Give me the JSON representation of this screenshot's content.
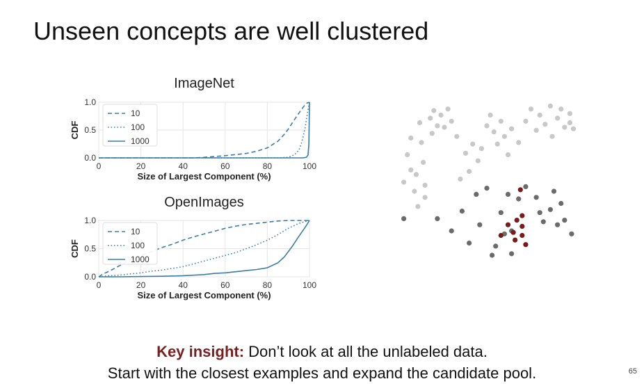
{
  "slide": {
    "title": "Unseen concepts are well clustered",
    "key_label": "Key insight:",
    "insight_line1": " Don’t look at all the unlabeled data.",
    "insight_line2": "Start with the closest examples and expand the candidate pool.",
    "page_number": "65"
  },
  "chart_data": [
    {
      "type": "line",
      "title": "ImageNet",
      "xlabel": "Size of Largest Component (%)",
      "ylabel": "CDF",
      "xlim": [
        0,
        100
      ],
      "ylim": [
        0,
        1
      ],
      "xticks": [
        0,
        20,
        40,
        60,
        80,
        100
      ],
      "yticks": [
        0.0,
        0.5,
        1.0
      ],
      "legend": "top-left",
      "grid": true,
      "series": [
        {
          "name": "10",
          "style": "dashed",
          "x": [
            0,
            45,
            50,
            60,
            70,
            75,
            80,
            85,
            88,
            90,
            92,
            94,
            96,
            97,
            98,
            99,
            100
          ],
          "y": [
            0,
            0,
            0.01,
            0.04,
            0.08,
            0.12,
            0.18,
            0.3,
            0.42,
            0.52,
            0.64,
            0.75,
            0.86,
            0.91,
            0.96,
            0.99,
            1.0
          ]
        },
        {
          "name": "100",
          "style": "dotted",
          "x": [
            0,
            85,
            90,
            93,
            95,
            96,
            97,
            98,
            99,
            100
          ],
          "y": [
            0,
            0,
            0.01,
            0.06,
            0.14,
            0.24,
            0.38,
            0.55,
            0.8,
            1.0
          ]
        },
        {
          "name": "1000",
          "style": "solid",
          "x": [
            0,
            97,
            98.5,
            99.3,
            99.7,
            100
          ],
          "y": [
            0,
            0,
            0.01,
            0.05,
            0.25,
            1.0
          ]
        }
      ]
    },
    {
      "type": "line",
      "title": "OpenImages",
      "xlabel": "Size of Largest Component (%)",
      "ylabel": "CDF",
      "xlim": [
        0,
        100
      ],
      "ylim": [
        0,
        1
      ],
      "xticks": [
        0,
        20,
        40,
        60,
        80,
        100
      ],
      "yticks": [
        0.0,
        0.5,
        1.0
      ],
      "legend": "top-left",
      "grid": true,
      "series": [
        {
          "name": "10",
          "style": "dashed",
          "x": [
            0,
            2,
            5,
            10,
            15,
            20,
            25,
            30,
            35,
            40,
            45,
            50,
            55,
            60,
            65,
            70,
            75,
            80,
            85,
            90,
            95,
            100
          ],
          "y": [
            0,
            0.05,
            0.1,
            0.2,
            0.3,
            0.37,
            0.45,
            0.52,
            0.58,
            0.65,
            0.71,
            0.76,
            0.81,
            0.86,
            0.9,
            0.93,
            0.95,
            0.97,
            0.99,
            1.0,
            1.0,
            1.0
          ]
        },
        {
          "name": "100",
          "style": "dotted",
          "x": [
            0,
            5,
            10,
            15,
            20,
            25,
            30,
            35,
            40,
            45,
            50,
            55,
            60,
            65,
            70,
            75,
            80,
            85,
            90,
            95,
            100
          ],
          "y": [
            0,
            0.02,
            0.03,
            0.05,
            0.07,
            0.1,
            0.12,
            0.15,
            0.18,
            0.23,
            0.28,
            0.33,
            0.38,
            0.43,
            0.5,
            0.57,
            0.65,
            0.75,
            0.86,
            0.95,
            1.0
          ]
        },
        {
          "name": "1000",
          "style": "solid",
          "x": [
            0,
            10,
            20,
            30,
            40,
            50,
            55,
            60,
            65,
            70,
            75,
            80,
            85,
            88,
            90,
            92,
            95,
            98,
            100
          ],
          "y": [
            0,
            0,
            0.005,
            0.01,
            0.02,
            0.04,
            0.06,
            0.07,
            0.09,
            0.11,
            0.13,
            0.16,
            0.25,
            0.35,
            0.45,
            0.55,
            0.72,
            0.88,
            1.0
          ]
        }
      ]
    }
  ],
  "scatter": {
    "colors": {
      "far": "#c8c8c8",
      "near": "#6b6b6b",
      "core": "#7a1a1a"
    },
    "points": [
      {
        "x": 0.03,
        "y": 0.52,
        "group": "far"
      },
      {
        "x": 0.05,
        "y": 0.34,
        "group": "far"
      },
      {
        "x": 0.07,
        "y": 0.23,
        "group": "far"
      },
      {
        "x": 0.07,
        "y": 0.44,
        "group": "far"
      },
      {
        "x": 0.09,
        "y": 0.58,
        "group": "far"
      },
      {
        "x": 0.1,
        "y": 0.47,
        "group": "far"
      },
      {
        "x": 0.11,
        "y": 0.68,
        "group": "far"
      },
      {
        "x": 0.12,
        "y": 0.13,
        "group": "far"
      },
      {
        "x": 0.13,
        "y": 0.26,
        "group": "far"
      },
      {
        "x": 0.14,
        "y": 0.39,
        "group": "far"
      },
      {
        "x": 0.15,
        "y": 0.54,
        "group": "far"
      },
      {
        "x": 0.15,
        "y": 0.62,
        "group": "far"
      },
      {
        "x": 0.18,
        "y": 0.1,
        "group": "far"
      },
      {
        "x": 0.19,
        "y": 0.2,
        "group": "far"
      },
      {
        "x": 0.2,
        "y": 0.05,
        "group": "far"
      },
      {
        "x": 0.22,
        "y": 0.15,
        "group": "far"
      },
      {
        "x": 0.24,
        "y": 0.08,
        "group": "far"
      },
      {
        "x": 0.26,
        "y": 0.16,
        "group": "far"
      },
      {
        "x": 0.28,
        "y": 0.04,
        "group": "far"
      },
      {
        "x": 0.3,
        "y": 0.12,
        "group": "far"
      },
      {
        "x": 0.33,
        "y": 0.22,
        "group": "far"
      },
      {
        "x": 0.35,
        "y": 0.5,
        "group": "far"
      },
      {
        "x": 0.38,
        "y": 0.33,
        "group": "far"
      },
      {
        "x": 0.4,
        "y": 0.45,
        "group": "far"
      },
      {
        "x": 0.42,
        "y": 0.27,
        "group": "far"
      },
      {
        "x": 0.45,
        "y": 0.38,
        "group": "far"
      },
      {
        "x": 0.47,
        "y": 0.3,
        "group": "far"
      },
      {
        "x": 0.5,
        "y": 0.15,
        "group": "far"
      },
      {
        "x": 0.52,
        "y": 0.08,
        "group": "far"
      },
      {
        "x": 0.54,
        "y": 0.19,
        "group": "far"
      },
      {
        "x": 0.56,
        "y": 0.27,
        "group": "far"
      },
      {
        "x": 0.58,
        "y": 0.12,
        "group": "far"
      },
      {
        "x": 0.6,
        "y": 0.22,
        "group": "far"
      },
      {
        "x": 0.62,
        "y": 0.34,
        "group": "far"
      },
      {
        "x": 0.64,
        "y": 0.17,
        "group": "far"
      },
      {
        "x": 0.68,
        "y": 0.26,
        "group": "far"
      },
      {
        "x": 0.72,
        "y": 0.12,
        "group": "far"
      },
      {
        "x": 0.75,
        "y": 0.04,
        "group": "far"
      },
      {
        "x": 0.78,
        "y": 0.18,
        "group": "far"
      },
      {
        "x": 0.8,
        "y": 0.08,
        "group": "far"
      },
      {
        "x": 0.83,
        "y": 0.14,
        "group": "far"
      },
      {
        "x": 0.86,
        "y": 0.02,
        "group": "far"
      },
      {
        "x": 0.87,
        "y": 0.22,
        "group": "far"
      },
      {
        "x": 0.9,
        "y": 0.1,
        "group": "far"
      },
      {
        "x": 0.92,
        "y": 0.04,
        "group": "far"
      },
      {
        "x": 0.94,
        "y": 0.16,
        "group": "far"
      },
      {
        "x": 0.97,
        "y": 0.13,
        "group": "far"
      },
      {
        "x": 0.97,
        "y": 0.07,
        "group": "far"
      },
      {
        "x": 0.99,
        "y": 0.17,
        "group": "far"
      },
      {
        "x": 0.03,
        "y": 0.76,
        "group": "near"
      },
      {
        "x": 0.22,
        "y": 0.76,
        "group": "near"
      },
      {
        "x": 0.3,
        "y": 0.84,
        "group": "near"
      },
      {
        "x": 0.36,
        "y": 0.71,
        "group": "near"
      },
      {
        "x": 0.4,
        "y": 0.92,
        "group": "near"
      },
      {
        "x": 0.44,
        "y": 0.6,
        "group": "near"
      },
      {
        "x": 0.46,
        "y": 0.8,
        "group": "near"
      },
      {
        "x": 0.5,
        "y": 0.56,
        "group": "near"
      },
      {
        "x": 0.53,
        "y": 1.0,
        "group": "near"
      },
      {
        "x": 0.55,
        "y": 0.94,
        "group": "near"
      },
      {
        "x": 0.58,
        "y": 0.72,
        "group": "near"
      },
      {
        "x": 0.62,
        "y": 0.6,
        "group": "near"
      },
      {
        "x": 0.6,
        "y": 0.86,
        "group": "near"
      },
      {
        "x": 0.64,
        "y": 0.99,
        "group": "near"
      },
      {
        "x": 0.68,
        "y": 0.63,
        "group": "near"
      },
      {
        "x": 0.72,
        "y": 0.55,
        "group": "near"
      },
      {
        "x": 0.78,
        "y": 0.62,
        "group": "near"
      },
      {
        "x": 0.8,
        "y": 0.72,
        "group": "near"
      },
      {
        "x": 0.82,
        "y": 0.78,
        "group": "near"
      },
      {
        "x": 0.86,
        "y": 0.7,
        "group": "near"
      },
      {
        "x": 0.88,
        "y": 0.58,
        "group": "near"
      },
      {
        "x": 0.9,
        "y": 0.8,
        "group": "near"
      },
      {
        "x": 0.92,
        "y": 0.66,
        "group": "near"
      },
      {
        "x": 0.94,
        "y": 0.77,
        "group": "near"
      },
      {
        "x": 0.98,
        "y": 0.86,
        "group": "near"
      },
      {
        "x": 0.64,
        "y": 0.84,
        "group": "near"
      },
      {
        "x": 0.62,
        "y": 0.8,
        "group": "core"
      },
      {
        "x": 0.67,
        "y": 0.77,
        "group": "core"
      },
      {
        "x": 0.7,
        "y": 0.81,
        "group": "core"
      },
      {
        "x": 0.65,
        "y": 0.85,
        "group": "core"
      },
      {
        "x": 0.7,
        "y": 0.87,
        "group": "core"
      },
      {
        "x": 0.66,
        "y": 0.9,
        "group": "core"
      },
      {
        "x": 0.72,
        "y": 0.93,
        "group": "core"
      },
      {
        "x": 0.58,
        "y": 0.87,
        "group": "core"
      },
      {
        "x": 0.69,
        "y": 0.57,
        "group": "core"
      },
      {
        "x": 0.7,
        "y": 0.74,
        "group": "core"
      }
    ]
  }
}
